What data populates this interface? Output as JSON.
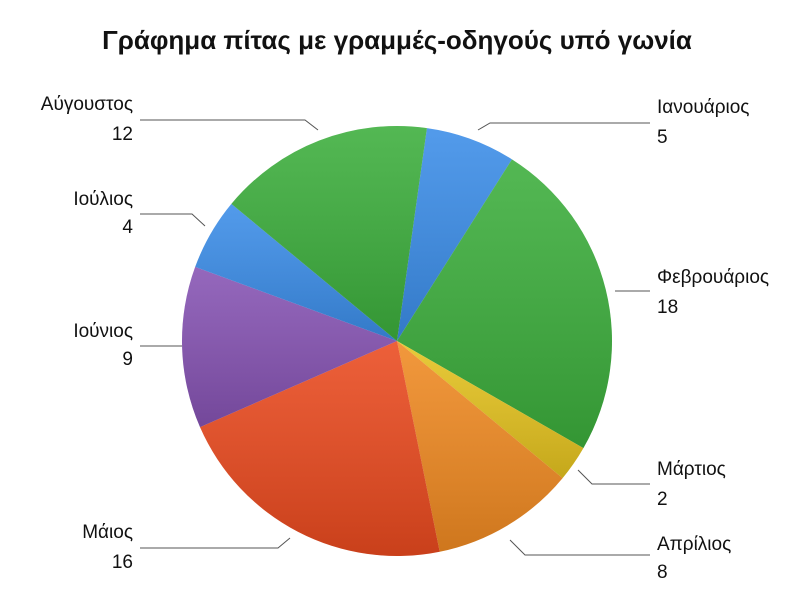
{
  "chart_data": {
    "type": "pie",
    "title": "Γράφημα πίτας με γραμμές-οδηγούς υπό γωνία",
    "categories": [
      "Ιανουάριος",
      "Φεβρουάριος",
      "Μάρτιος",
      "Απρίλιος",
      "Μάιος",
      "Ιούνιος",
      "Ιούλιος",
      "Αύγουστος"
    ],
    "values": [
      5,
      18,
      2,
      8,
      16,
      9,
      4,
      12
    ],
    "colors": [
      "#3b8de8",
      "#3cae3c",
      "#e5c31f",
      "#f08a22",
      "#ea4a1f",
      "#8653b3",
      "#3b8de8",
      "#3cae3c"
    ]
  }
}
